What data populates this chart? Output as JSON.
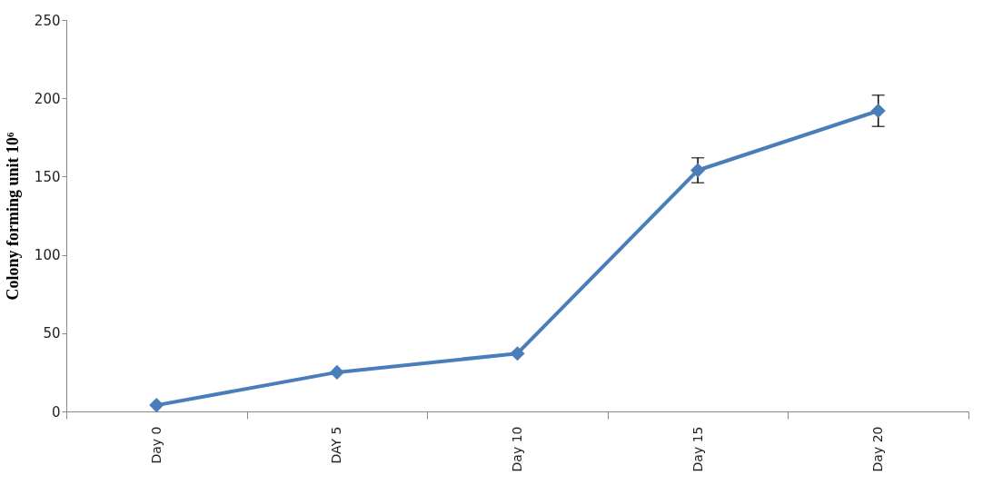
{
  "chart_data": {
    "type": "line",
    "ylabel": "Colony forming unit 10⁶",
    "categories": [
      "Day 0",
      "DAY 5",
      "Day 10",
      "Day 15",
      "Day 20"
    ],
    "series": [
      {
        "color": "#4a7ebb",
        "values": [
          4,
          25,
          37,
          154,
          192
        ],
        "errors": [
          null,
          null,
          null,
          8,
          10
        ]
      }
    ],
    "ylim": [
      0,
      250
    ],
    "yticks": [
      0,
      50,
      100,
      150,
      200,
      250
    ],
    "grid": false,
    "marker": "diamond",
    "line_style": "solid"
  }
}
